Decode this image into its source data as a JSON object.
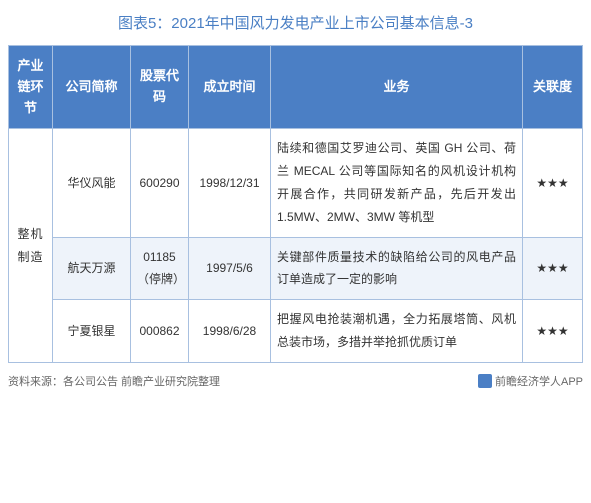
{
  "title": "图表5：2021年中国风力发电产业上市公司基本信息-3",
  "headers": {
    "chain": "产业链环节",
    "name": "公司简称",
    "code": "股票代码",
    "date": "成立时间",
    "biz": "业务",
    "rel": "关联度"
  },
  "chain_label": "整机制造",
  "rows": [
    {
      "name": "华仪风能",
      "code": "600290",
      "date": "1998/12/31",
      "biz": "陆续和德国艾罗迪公司、英国 GH 公司、荷兰 MECAL 公司等国际知名的风机设计机构开展合作，共同研发新产品，先后开发出 1.5MW、2MW、3MW 等机型",
      "rel": "★★★"
    },
    {
      "name": "航天万源",
      "code": "01185（停牌）",
      "date": "1997/5/6",
      "biz": "关键部件质量技术的缺陷给公司的风电产品订单造成了一定的影响",
      "rel": "★★★"
    },
    {
      "name": "宁夏银星",
      "code": "000862",
      "date": "1998/6/28",
      "biz": "把握风电抢装潮机遇，全力拓展塔筒、风机总装市场，多措并举抢抓优质订单",
      "rel": "★★★"
    }
  ],
  "footer": {
    "source": "资料来源：各公司公告 前瞻产业研究院整理",
    "brand": "前瞻经济学人APP"
  },
  "colors": {
    "header_bg": "#4b7fc5",
    "header_fg": "#ffffff",
    "border": "#a8c0e0",
    "alt_bg": "#eef3fa",
    "title_color": "#4a7fc4"
  }
}
